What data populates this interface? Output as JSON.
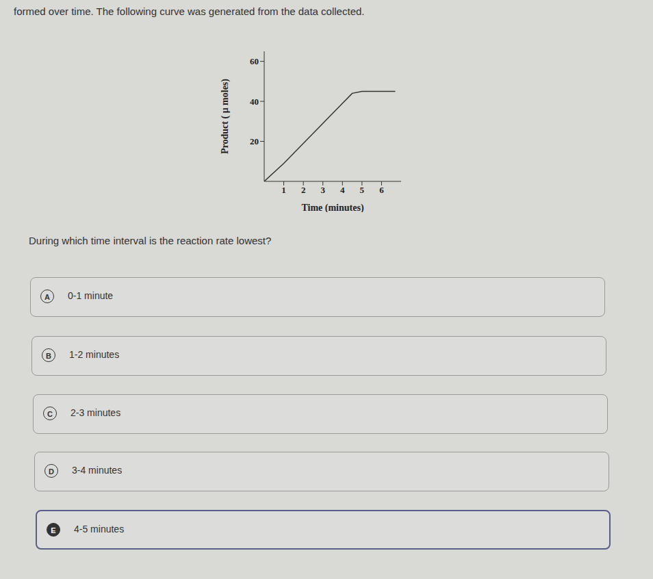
{
  "header": {
    "text": "formed over time. The following curve was generated from the data collected."
  },
  "chart_data": {
    "type": "line",
    "x_label": "Time (minutes)",
    "y_label": "Product ( μ moles)",
    "x": [
      0,
      1,
      2,
      3,
      4,
      4.5,
      5,
      6.7
    ],
    "series": [
      {
        "name": "Product",
        "color": "#333333",
        "values": [
          0,
          9,
          19,
          29,
          39,
          44,
          45,
          45
        ]
      }
    ],
    "xlim": [
      0,
      7
    ],
    "xticks": [
      1,
      2,
      3,
      4,
      5,
      6
    ],
    "ylim": [
      0,
      65
    ],
    "yticks": [
      20,
      40,
      60
    ],
    "grid": false
  },
  "question": "During which time interval is the reaction rate lowest?",
  "options": [
    {
      "letter": "A",
      "text": "0-1 minute"
    },
    {
      "letter": "B",
      "text": "1-2 minutes"
    },
    {
      "letter": "C",
      "text": "2-3 minutes"
    },
    {
      "letter": "D",
      "text": "3-4 minutes"
    },
    {
      "letter": "E",
      "text": "4-5 minutes"
    }
  ],
  "selected": "E"
}
